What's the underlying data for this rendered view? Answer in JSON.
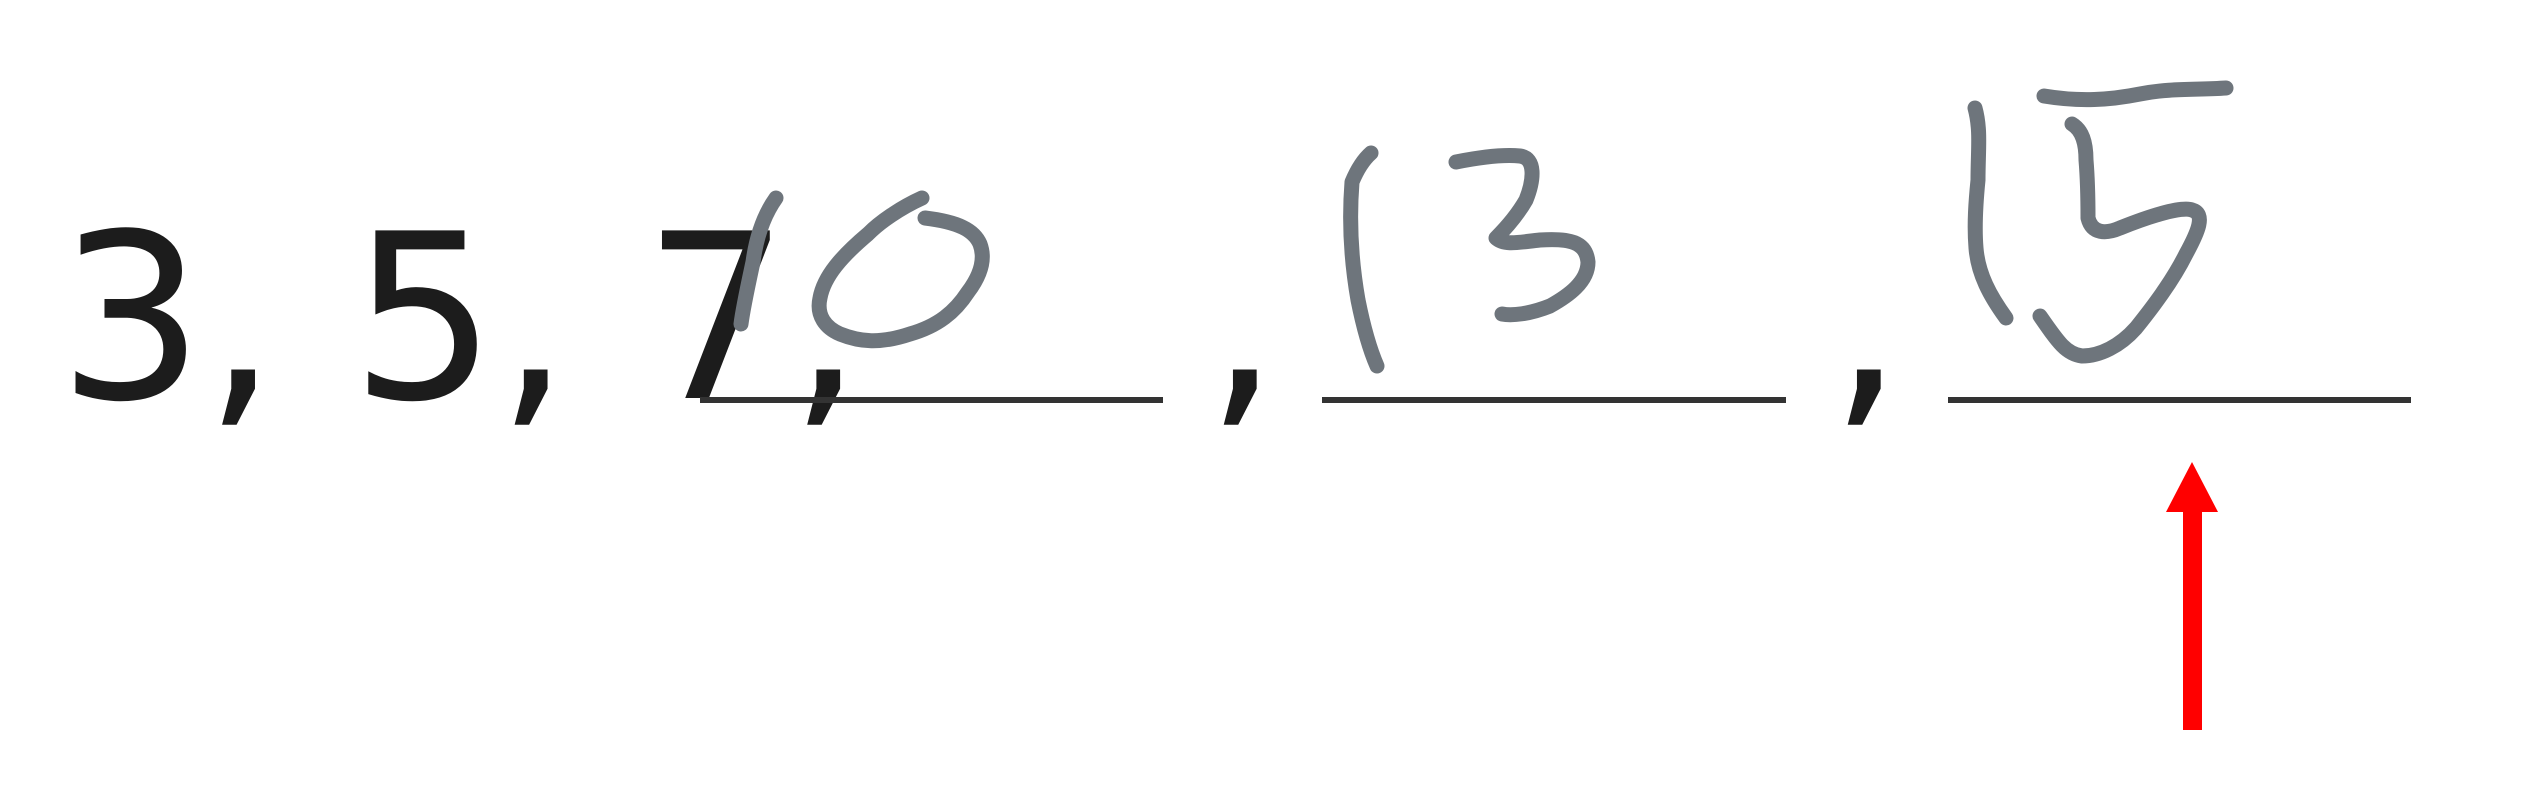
{
  "sequence": {
    "given_terms": "3, 5, 7,",
    "separators": [
      ",",
      ","
    ],
    "answers": [
      {
        "value": "10"
      },
      {
        "value": "13"
      },
      {
        "value": "15"
      }
    ]
  },
  "colors": {
    "printed_text": "#1c1c1c",
    "answer_line": "#333333",
    "handwriting_ink": "#6e757c",
    "arrow": "#ff0000"
  },
  "indicator": {
    "icon": "arrow-up-icon",
    "points_to_answer_index": 2
  }
}
